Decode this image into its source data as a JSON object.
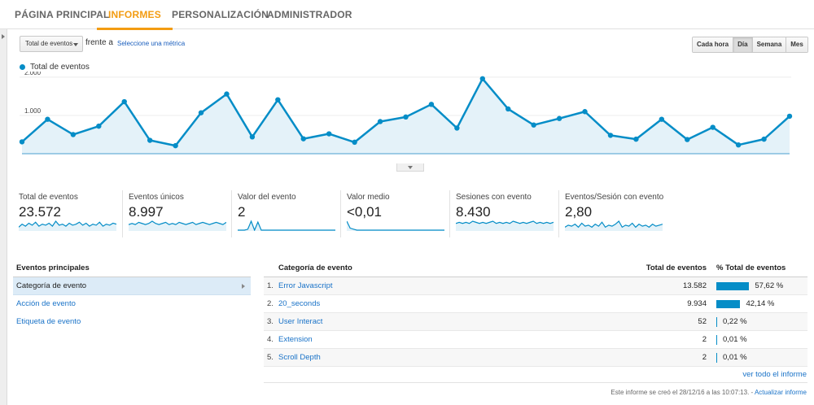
{
  "nav": {
    "tabs": [
      {
        "label": "PÁGINA PRINCIPAL"
      },
      {
        "label": "INFORMES"
      },
      {
        "label": "PERSONALIZACIÓN"
      },
      {
        "label": "ADMINISTRADOR"
      }
    ],
    "active_tab": "INFORMES"
  },
  "toolbar": {
    "metric_select": "Total de eventos",
    "versus_label": "frente a",
    "select_metric_link": "Seleccione una métrica",
    "granularity": [
      "Cada hora",
      "Día",
      "Semana",
      "Mes"
    ],
    "active_granularity": "Día"
  },
  "colors": {
    "accent": "#f39c12",
    "series": "#058dc7",
    "area": "#e4f2f9",
    "link": "#1a73c8",
    "selected_row": "#dcebf7"
  },
  "icons": {
    "sidebar_toggle": "caret-right-icon",
    "select_dropdown": "caret-down-icon",
    "expand_chart": "caret-down-icon",
    "dimension_arrow": "caret-right-icon"
  },
  "chart_data": {
    "type": "line",
    "legend": "Total de eventos",
    "ytick_labels": [
      "2.000",
      "1.000"
    ],
    "yticks": [
      2000,
      1000
    ],
    "ylim": [
      0,
      2000
    ],
    "series": [
      {
        "name": "Total de eventos",
        "values": [
          310,
          900,
          500,
          720,
          1360,
          350,
          210,
          1070,
          1560,
          440,
          1410,
          390,
          520,
          300,
          840,
          960,
          1290,
          670,
          1960,
          1170,
          750,
          920,
          1100,
          480,
          380,
          900,
          370,
          690,
          230,
          380,
          980
        ]
      }
    ],
    "grid": true
  },
  "scorecards": [
    {
      "label": "Total de eventos",
      "value": "23.572",
      "spark": [
        3,
        6,
        4,
        7,
        5,
        8,
        4,
        6,
        5,
        7,
        4,
        9,
        5,
        6,
        4,
        7,
        5,
        6,
        8,
        5,
        7,
        4,
        6,
        5,
        8,
        4,
        6,
        5,
        7,
        6
      ]
    },
    {
      "label": "Eventos únicos",
      "value": "8.997",
      "spark": [
        5,
        6,
        5,
        7,
        6,
        5,
        6,
        8,
        6,
        5,
        6,
        7,
        5,
        6,
        5,
        7,
        6,
        5,
        6,
        7,
        5,
        6,
        7,
        6,
        5,
        6,
        7,
        6,
        5,
        7
      ]
    },
    {
      "label": "Valor del evento",
      "value": "2",
      "spark": [
        0,
        0,
        0,
        1,
        10,
        0,
        9,
        0,
        0,
        0,
        0,
        0,
        0,
        0,
        0,
        0,
        0,
        0,
        0,
        0,
        0,
        0,
        0,
        0,
        0,
        0,
        0,
        0,
        0,
        0
      ]
    },
    {
      "label": "Valor medio",
      "value": "<0,01",
      "spark": [
        9,
        2,
        1,
        0,
        0,
        0,
        0,
        0,
        0,
        0,
        0,
        0,
        0,
        0,
        0,
        0,
        0,
        0,
        0,
        0,
        0,
        0,
        0,
        0,
        0,
        0,
        0,
        0,
        0,
        0
      ]
    },
    {
      "label": "Sesiones con evento",
      "value": "8.430",
      "spark": [
        6,
        7,
        6,
        7,
        6,
        8,
        7,
        6,
        7,
        6,
        7,
        8,
        6,
        7,
        6,
        7,
        6,
        8,
        7,
        6,
        7,
        6,
        7,
        8,
        6,
        7,
        6,
        7,
        6,
        7
      ]
    },
    {
      "label": "Eventos/Sesión con evento",
      "value": "2,80",
      "spark": [
        3,
        5,
        4,
        6,
        3,
        7,
        4,
        5,
        3,
        6,
        4,
        8,
        3,
        5,
        4,
        6,
        9,
        3,
        5,
        4,
        7,
        3,
        6,
        4,
        5,
        3,
        6,
        4,
        5,
        6
      ]
    }
  ],
  "dimensions": {
    "heading": "Eventos principales",
    "items": [
      {
        "label": "Categoría de evento"
      },
      {
        "label": "Acción de evento"
      },
      {
        "label": "Etiqueta de evento"
      }
    ]
  },
  "table": {
    "headers": {
      "category": "Categoría de evento",
      "total": "Total de eventos",
      "pct": "% Total de eventos"
    },
    "rows": [
      {
        "idx": "1.",
        "category": "Error Javascript",
        "total": "13.582",
        "pct": "57,62 %",
        "share": 0.5762
      },
      {
        "idx": "2.",
        "category": "20_seconds",
        "total": "9.934",
        "pct": "42,14 %",
        "share": 0.4214
      },
      {
        "idx": "3.",
        "category": "User Interact",
        "total": "52",
        "pct": "0,22 %",
        "share": 0.0022
      },
      {
        "idx": "4.",
        "category": "Extension",
        "total": "2",
        "pct": "0,01 %",
        "share": 0.0001
      },
      {
        "idx": "5.",
        "category": "Scroll Depth",
        "total": "2",
        "pct": "0,01 %",
        "share": 0.0001
      }
    ],
    "full_report_link": "ver todo el informe"
  },
  "footer": {
    "created": "Este informe se creó el 28/12/16 a las 10:07:13. -",
    "refresh": "Actualizar informe"
  }
}
